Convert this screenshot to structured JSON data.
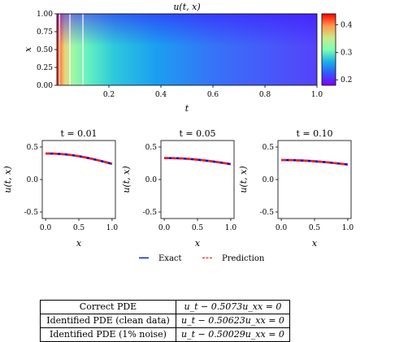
{
  "chart_data": [
    {
      "type": "heatmap",
      "title": "u(t, x)",
      "xlabel": "t",
      "ylabel": "x",
      "xlim": [
        0.0,
        1.0
      ],
      "ylim": [
        0.0,
        1.0
      ],
      "x_ticks": [
        "0.2",
        "0.4",
        "0.6",
        "0.8",
        "1.0"
      ],
      "y_ticks": [
        "0.00",
        "0.25",
        "0.50",
        "0.75",
        "1.00"
      ],
      "colorbar": {
        "range": [
          0.18,
          0.44
        ],
        "ticks": [
          "0.2",
          "0.3",
          "0.4"
        ],
        "colormap": "rainbow"
      },
      "vertical_lines_t": [
        0.01,
        0.05,
        0.1
      ],
      "line_color": "#ffffff"
    },
    {
      "type": "line",
      "title": "t = 0.01",
      "xlabel": "x",
      "ylabel": "u(t, x)",
      "xlim": [
        -0.05,
        1.05
      ],
      "ylim": [
        -0.6,
        0.6
      ],
      "x_ticks": [
        "0.0",
        "0.5",
        "1.0"
      ],
      "y_ticks": [
        "0.5",
        "0.0",
        "-0.5"
      ],
      "x": [
        0.0,
        0.1,
        0.2,
        0.3,
        0.4,
        0.5,
        0.6,
        0.7,
        0.8,
        0.9,
        1.0
      ],
      "series": [
        {
          "name": "Exact",
          "values": [
            0.4,
            0.399,
            0.395,
            0.387,
            0.375,
            0.359,
            0.34,
            0.318,
            0.294,
            0.268,
            0.24
          ],
          "color": "#0000dd",
          "style": "solid"
        },
        {
          "name": "Prediction",
          "values": [
            0.4,
            0.399,
            0.395,
            0.387,
            0.375,
            0.359,
            0.34,
            0.318,
            0.294,
            0.268,
            0.24
          ],
          "color": "#ee2222",
          "style": "dashed"
        }
      ]
    },
    {
      "type": "line",
      "title": "t = 0.05",
      "xlabel": "x",
      "ylabel": "u(t, x)",
      "xlim": [
        -0.05,
        1.05
      ],
      "ylim": [
        -0.6,
        0.6
      ],
      "x_ticks": [
        "0.0",
        "0.5",
        "1.0"
      ],
      "y_ticks": [
        "0.5",
        "0.0",
        "-0.5"
      ],
      "x": [
        0.0,
        0.1,
        0.2,
        0.3,
        0.4,
        0.5,
        0.6,
        0.7,
        0.8,
        0.9,
        1.0
      ],
      "series": [
        {
          "name": "Exact",
          "values": [
            0.33,
            0.329,
            0.327,
            0.322,
            0.315,
            0.306,
            0.295,
            0.282,
            0.268,
            0.253,
            0.237
          ],
          "color": "#0000dd",
          "style": "solid"
        },
        {
          "name": "Prediction",
          "values": [
            0.33,
            0.329,
            0.327,
            0.322,
            0.315,
            0.306,
            0.295,
            0.282,
            0.268,
            0.253,
            0.237
          ],
          "color": "#ee2222",
          "style": "dashed"
        }
      ]
    },
    {
      "type": "line",
      "title": "t = 0.10",
      "xlabel": "x",
      "ylabel": "u(t, x)",
      "xlim": [
        -0.05,
        1.05
      ],
      "ylim": [
        -0.6,
        0.6
      ],
      "x_ticks": [
        "0.0",
        "0.5",
        "1.0"
      ],
      "y_ticks": [
        "0.5",
        "0.0",
        "-0.5"
      ],
      "x": [
        0.0,
        0.1,
        0.2,
        0.3,
        0.4,
        0.5,
        0.6,
        0.7,
        0.8,
        0.9,
        1.0
      ],
      "series": [
        {
          "name": "Exact",
          "values": [
            0.3,
            0.299,
            0.297,
            0.293,
            0.288,
            0.281,
            0.273,
            0.264,
            0.253,
            0.242,
            0.23
          ],
          "color": "#0000dd",
          "style": "solid"
        },
        {
          "name": "Prediction",
          "values": [
            0.3,
            0.299,
            0.297,
            0.293,
            0.288,
            0.281,
            0.273,
            0.264,
            0.253,
            0.242,
            0.23
          ],
          "color": "#ee2222",
          "style": "dashed"
        }
      ]
    }
  ],
  "legend": {
    "placement": "bottom-center",
    "items": [
      {
        "label": "Exact",
        "color": "#0000dd"
      },
      {
        "label": "Prediction",
        "color": "#ee2222"
      }
    ]
  },
  "pde_table": {
    "rows": [
      {
        "label": "Correct PDE",
        "equation": "u_t − 0.5073u_xx = 0"
      },
      {
        "label": "Identified PDE (clean data)",
        "equation": "u_t − 0.50623u_xx = 0"
      },
      {
        "label": "Identified PDE (1% noise)",
        "equation": "u_t − 0.50029u_xx = 0"
      }
    ]
  }
}
